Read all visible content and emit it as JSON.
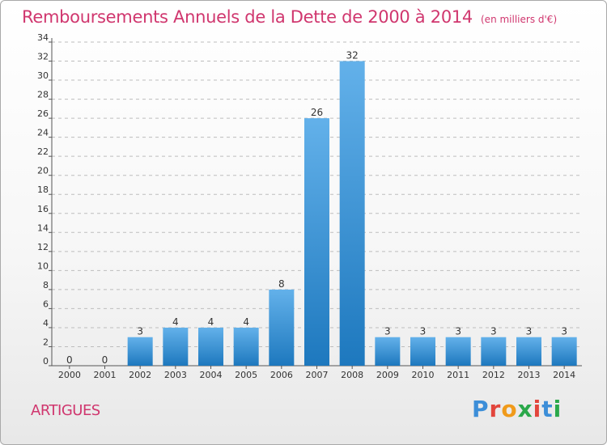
{
  "header": {
    "title": "Remboursements Annuels de la Dette de 2000 à 2014",
    "unit": "(en milliers d'€)"
  },
  "footer": {
    "commune": "ARTIGUES",
    "brand": "Proxiti"
  },
  "colors": {
    "title": "#d0366e",
    "bar_top": "#63b1ea",
    "bar_bottom": "#1d78be",
    "grid": "#bdbdbd"
  },
  "chart_data": {
    "type": "bar",
    "title": "Remboursements Annuels de la Dette de 2000 à 2014",
    "categories": [
      "2000",
      "2001",
      "2002",
      "2003",
      "2004",
      "2005",
      "2006",
      "2007",
      "2008",
      "2009",
      "2010",
      "2011",
      "2012",
      "2013",
      "2014"
    ],
    "values": [
      0,
      0,
      3,
      4,
      4,
      4,
      8,
      26,
      32,
      3,
      3,
      3,
      3,
      3,
      3
    ],
    "value_labels": [
      "0",
      "0",
      "3",
      "4",
      "4",
      "4",
      "8",
      "26",
      "32",
      "3",
      "3",
      "3",
      "3",
      "3",
      "3"
    ],
    "yticks": [
      "0",
      "2",
      "4",
      "6",
      "8",
      "10",
      "12",
      "14",
      "16",
      "18",
      "20",
      "22",
      "24",
      "26",
      "28",
      "30",
      "32",
      "34"
    ],
    "ylim": [
      0,
      34
    ],
    "xlabel": "",
    "ylabel": "",
    "grid": true,
    "legend": "none"
  }
}
